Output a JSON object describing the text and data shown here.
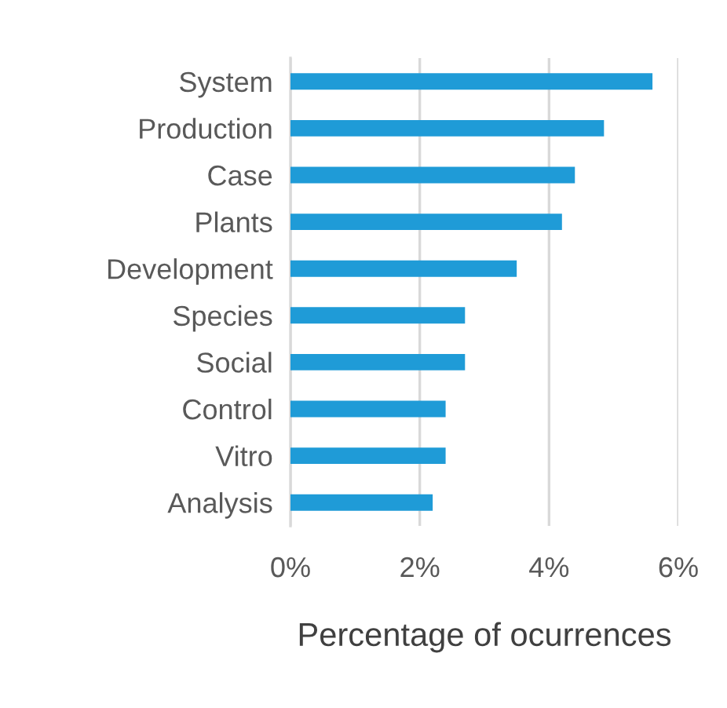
{
  "chart_data": {
    "type": "bar",
    "orientation": "horizontal",
    "xlabel": "Percentage of ocurrences",
    "categories": [
      "System",
      "Production",
      "Case",
      "Plants",
      "Development",
      "Species",
      "Social",
      "Control",
      "Vitro",
      "Analysis"
    ],
    "values": [
      5.6,
      4.85,
      4.4,
      4.2,
      3.5,
      2.7,
      2.7,
      2.4,
      2.4,
      2.2
    ],
    "color": "#1f9bd7",
    "xlim": [
      0,
      6
    ],
    "xticks": [
      {
        "value": 0,
        "label": "0%"
      },
      {
        "value": 2,
        "label": "2%"
      },
      {
        "value": 4,
        "label": "4%"
      },
      {
        "value": 6,
        "label": "6%"
      }
    ],
    "grid": "x",
    "legend": false
  }
}
